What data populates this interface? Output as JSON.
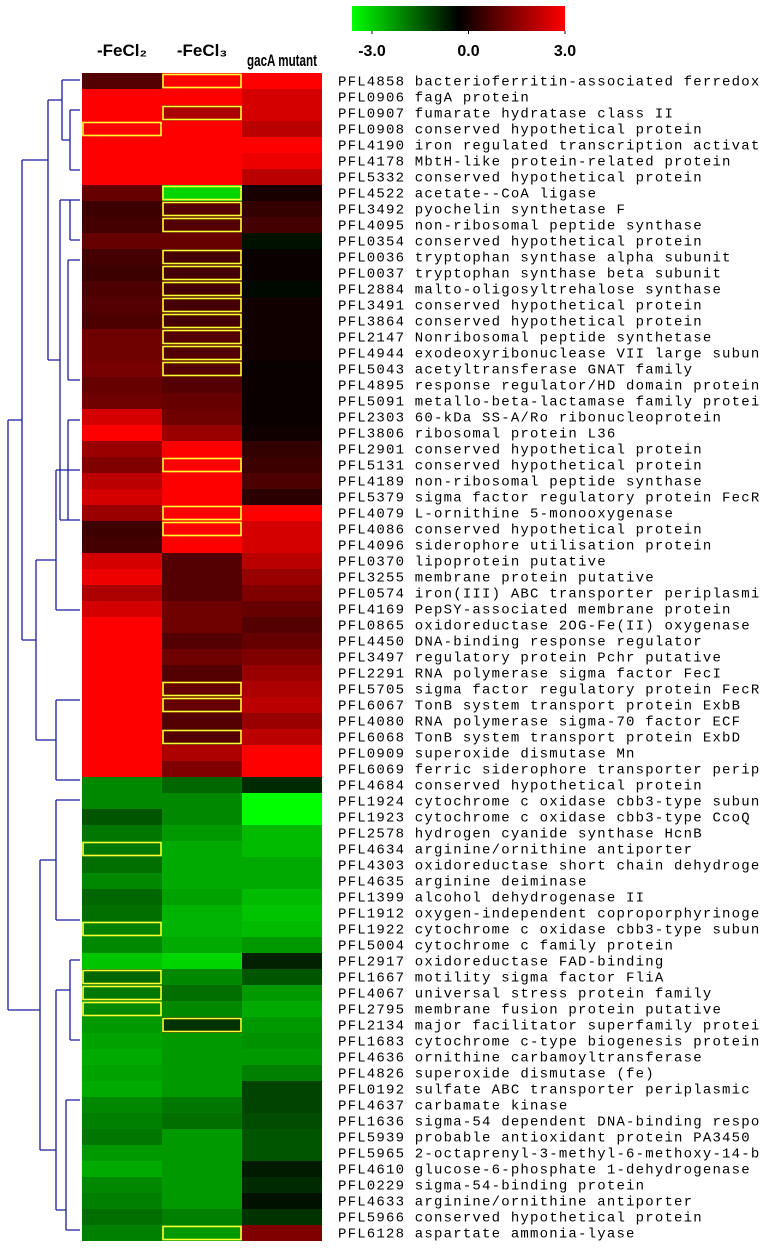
{
  "chart_data": {
    "type": "heatmap",
    "columns": [
      "-FeCl₂",
      "-FeCl₃",
      "gacA mutant"
    ],
    "categories": [
      "PFL4858 bacterioferritin-associated ferredox",
      "PFL0906 fagA protein",
      "PFL0907 fumarate hydratase class II",
      "PFL0908 conserved hypothetical protein",
      "PFL4190 iron regulated transcription activat",
      "PFL4178 MbtH-like protein-related protein",
      "PFL5332 conserved hypothetical protein",
      "PFL4522 acetate--CoA ligase",
      "PFL3492 pyochelin synthetase F",
      "PFL4095 non-ribosomal peptide synthase",
      "PFL0354 conserved hypothetical protein",
      "PFL0036 tryptophan synthase alpha subunit",
      "PFL0037 tryptophan synthase beta subunit",
      "PFL2884 malto-oligosyltrehalose synthase",
      "PFL3491 conserved hypothetical protein",
      "PFL3864 conserved hypothetical protein",
      "PFL2147 Nonribosomal peptide synthetase",
      "PFL4944 exodeoxyribonuclease VII large subun",
      "PFL5043 acetyltransferase GNAT family",
      "PFL4895 response regulator/HD domain protein",
      "PFL5091 metallo-beta-lactamase family protei",
      "PFL2303 60-kDa SS-A/Ro ribonucleoprotein",
      "PFL3806 ribosomal protein L36",
      "PFL2901 conserved hypothetical protein",
      "PFL5131 conserved hypothetical protein",
      "PFL4189 non-ribosomal peptide synthase",
      "PFL5379 sigma factor regulatory protein FecR",
      "PFL4079 L-ornithine 5-monooxygenase",
      "PFL4086 conserved hypothetical protein",
      "PFL4096 siderophore utilisation protein",
      "PFL0370 lipoprotein putative",
      "PFL3255 membrane protein putative",
      "PFL0574 iron(III) ABC transporter periplasmi",
      "PFL4169 PepSY-associated  membrane protein",
      "PFL0865 oxidoreductase 2OG-Fe(II) oxygenase",
      "PFL4450 DNA-binding response regulator",
      "PFL3497 regulatory protein Pchr putative",
      "PFL2291 RNA polymerase sigma factor FecI",
      "PFL5705 sigma factor regulatory protein FecR",
      "PFL6067 TonB system transport protein ExbB",
      "PFL4080 RNA polymerase sigma-70 factor ECF",
      "PFL6068 TonB system transport protein ExbD",
      "PFL0909 superoxide dismutase Mn",
      "PFL6069 ferric siderophore transporter perip",
      "PFL4684 conserved hypothetical protein",
      "PFL1924 cytochrome c oxidase cbb3-type subun",
      "PFL1923 cytochrome c oxidase cbb3-type CcoQ",
      "PFL2578 hydrogen cyanide synthase HcnB",
      "PFL4634 arginine/ornithine antiporter",
      "PFL4303 oxidoreductase short chain dehydroge",
      "PFL4635 arginine deiminase",
      "PFL1399 alcohol dehydrogenase II",
      "PFL1912 oxygen-independent coproporphyrinoge",
      "PFL1922 cytochrome c oxidase cbb3-type subun",
      "PFL5004 cytochrome c family protein",
      "PFL2917 oxidoreductase FAD-binding",
      "PFL1667 motility sigma factor FliA",
      "PFL4067 universal stress protein family",
      "PFL2795 membrane fusion protein putative",
      "PFL2134 major facilitator superfamily protei",
      "PFL1683 cytochrome c-type biogenesis protein",
      "PFL4636 ornithine carbamoyltransferase",
      "PFL4826 superoxide dismutase (fe)",
      "PFL0192 sulfate ABC transporter periplasmic",
      "PFL4637 carbamate kinase",
      "PFL1636 sigma-54 dependent DNA-binding respo",
      "PFL5939 probable antioxidant protein PA3450",
      "PFL5965 2-octaprenyl-3-methyl-6-methoxy-14-b",
      "PFL4610 glucose-6-phosphate 1-dehydrogenase",
      "PFL0229 sigma-54-binding protein",
      "PFL4633 arginine/ornithine antiporter",
      "PFL5966 conserved hypothetical protein",
      "PFL6128 aspartate ammonia-lyase"
    ],
    "values": [
      [
        1.0,
        3,
        3
      ],
      [
        3,
        3,
        2.5
      ],
      [
        3,
        2,
        2.5
      ],
      [
        3,
        3,
        2.2
      ],
      [
        3,
        3,
        3
      ],
      [
        3,
        3,
        2.8
      ],
      [
        3,
        3,
        2.2
      ],
      [
        1.2,
        -2.5,
        0.3
      ],
      [
        0.7,
        1.0,
        0.6
      ],
      [
        0.8,
        1.0,
        0.8
      ],
      [
        1.2,
        1.2,
        -0.2
      ],
      [
        0.8,
        0.8,
        0.1
      ],
      [
        0.7,
        0.8,
        0.1
      ],
      [
        0.9,
        0.8,
        -0.1
      ],
      [
        1.0,
        0.8,
        0.2
      ],
      [
        0.9,
        0.8,
        0.2
      ],
      [
        1.3,
        1.0,
        0.2
      ],
      [
        1.3,
        1.0,
        0.2
      ],
      [
        1.4,
        1.0,
        0.1
      ],
      [
        1.2,
        1.0,
        0.1
      ],
      [
        1.3,
        1.2,
        0.1
      ],
      [
        2.5,
        1.3,
        0.1
      ],
      [
        3,
        1.8,
        0.2
      ],
      [
        1.8,
        3,
        0.6
      ],
      [
        1.5,
        3,
        0.7
      ],
      [
        2.2,
        3,
        0.9
      ],
      [
        2.5,
        3,
        0.5
      ],
      [
        1.8,
        3,
        3
      ],
      [
        0.7,
        3,
        2.5
      ],
      [
        0.8,
        3,
        2.5
      ],
      [
        2.5,
        1.0,
        2.2
      ],
      [
        2.8,
        1.0,
        1.8
      ],
      [
        2.0,
        1.0,
        1.5
      ],
      [
        2.5,
        1.3,
        1.2
      ],
      [
        3,
        1.3,
        1.0
      ],
      [
        3,
        1.0,
        1.2
      ],
      [
        3,
        1.3,
        1.5
      ],
      [
        3,
        1.0,
        1.8
      ],
      [
        3,
        1.2,
        2.0
      ],
      [
        3,
        1.2,
        2.2
      ],
      [
        3,
        1.0,
        1.8
      ],
      [
        3,
        1.0,
        2.2
      ],
      [
        3,
        2.0,
        3
      ],
      [
        3,
        1.5,
        3
      ],
      [
        -1.6,
        -1.2,
        -0.5
      ],
      [
        -1.6,
        -1.6,
        -3
      ],
      [
        -1.0,
        -1.6,
        -3
      ],
      [
        -1.4,
        -1.8,
        -2.2
      ],
      [
        -1.4,
        -2.0,
        -2.2
      ],
      [
        -1.3,
        -2.0,
        -2.0
      ],
      [
        -1.6,
        -2.0,
        -2.0
      ],
      [
        -1.2,
        -1.9,
        -2.2
      ],
      [
        -1.3,
        -2.1,
        -2.3
      ],
      [
        -1.5,
        -2.1,
        -2.2
      ],
      [
        -1.6,
        -2.0,
        -1.8
      ],
      [
        -2.3,
        -2.5,
        -0.4
      ],
      [
        -1.2,
        -1.6,
        -1.0
      ],
      [
        -1.4,
        -1.3,
        -1.8
      ],
      [
        -1.6,
        -1.6,
        -2.0
      ],
      [
        -1.8,
        -0.6,
        -1.8
      ],
      [
        -1.9,
        -1.8,
        -1.7
      ],
      [
        -2.0,
        -1.8,
        -1.8
      ],
      [
        -1.9,
        -1.8,
        -1.5
      ],
      [
        -2.0,
        -1.8,
        -0.8
      ],
      [
        -1.6,
        -1.4,
        -0.8
      ],
      [
        -1.5,
        -1.3,
        -0.9
      ],
      [
        -1.4,
        -1.8,
        -1.0
      ],
      [
        -1.8,
        -1.8,
        -1.0
      ],
      [
        -2.0,
        -1.8,
        -0.3
      ],
      [
        -1.6,
        -1.8,
        -0.5
      ],
      [
        -1.5,
        -1.8,
        -0.2
      ],
      [
        -1.3,
        -1.5,
        -0.6
      ],
      [
        -1.5,
        -1.8,
        1.5
      ]
    ],
    "highlight": [
      [
        0,
        1
      ],
      [
        2,
        1
      ],
      [
        3,
        0
      ],
      [
        7,
        1
      ],
      [
        8,
        1
      ],
      [
        9,
        1
      ],
      [
        11,
        1
      ],
      [
        12,
        1
      ],
      [
        13,
        1
      ],
      [
        14,
        1
      ],
      [
        15,
        1
      ],
      [
        16,
        1
      ],
      [
        17,
        1
      ],
      [
        18,
        1
      ],
      [
        24,
        1
      ],
      [
        27,
        1
      ],
      [
        28,
        1
      ],
      [
        38,
        1
      ],
      [
        39,
        1
      ],
      [
        41,
        1
      ],
      [
        48,
        0
      ],
      [
        53,
        0
      ],
      [
        56,
        0
      ],
      [
        57,
        0
      ],
      [
        58,
        0
      ],
      [
        59,
        1
      ],
      [
        72,
        1
      ]
    ],
    "highlight_color": "#ffff33",
    "colorscale": [
      "#00ff00",
      "#000000",
      "#ff0000"
    ],
    "vlim": [
      -3,
      3
    ],
    "vticks": [
      {
        "value": -3,
        "label": "-3.0"
      },
      {
        "value": 0,
        "label": "0.0"
      },
      {
        "value": 3,
        "label": "3.0"
      }
    ]
  }
}
